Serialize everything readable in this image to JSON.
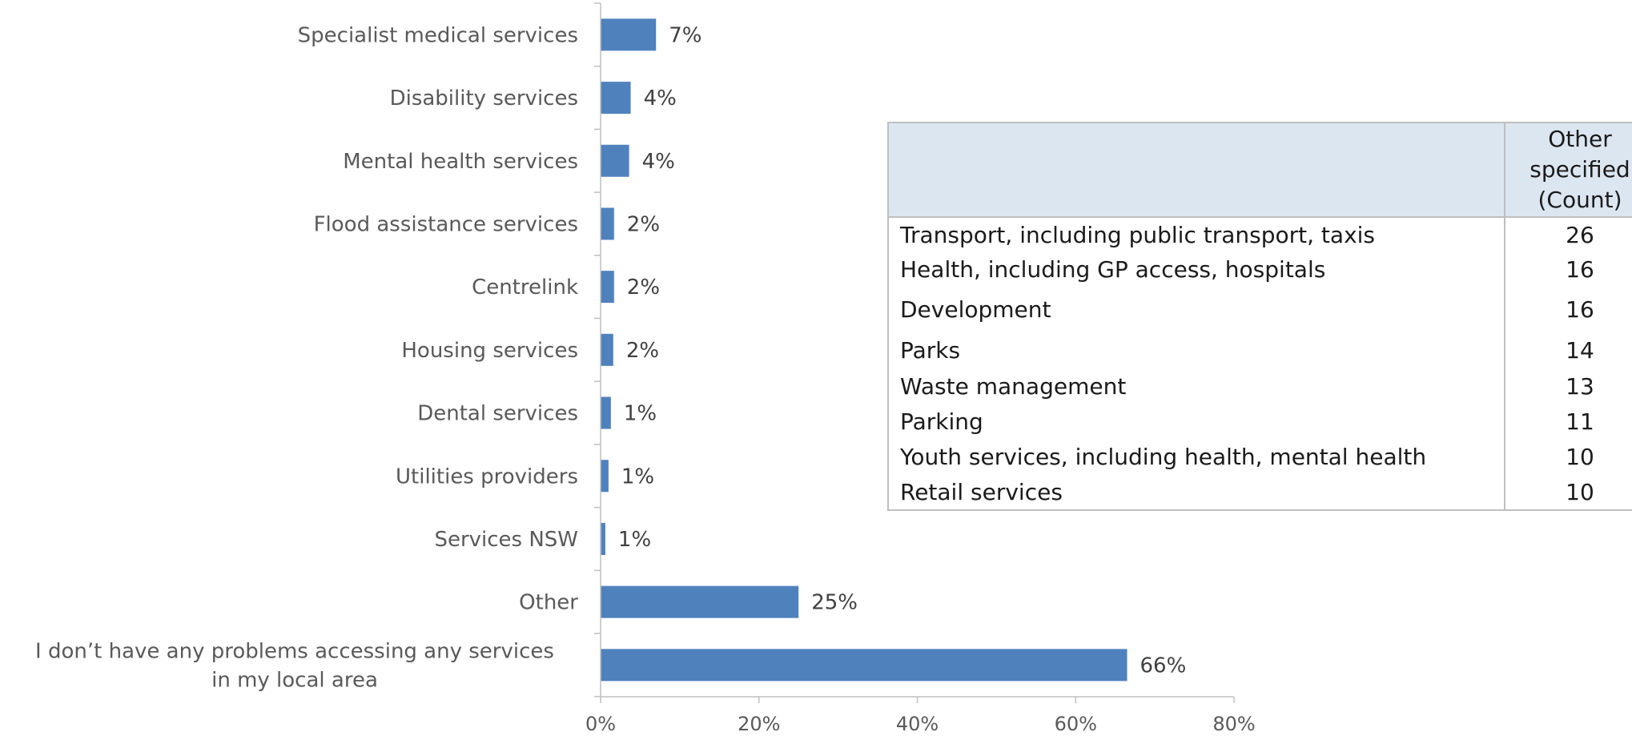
{
  "chart_data": {
    "type": "bar",
    "orientation": "horizontal",
    "categories": [
      "Specialist medical services",
      "Disability services",
      "Mental health services",
      "Flood assistance services",
      "Centrelink",
      "Housing services",
      "Dental services",
      "Utilities providers",
      "Services NSW",
      "Other",
      "I don’t have any problems accessing any services in my local area"
    ],
    "category_lines": [
      [
        "Specialist medical services"
      ],
      [
        "Disability services"
      ],
      [
        "Mental health services"
      ],
      [
        "Flood assistance services"
      ],
      [
        "Centrelink"
      ],
      [
        "Housing services"
      ],
      [
        "Dental services"
      ],
      [
        "Utilities providers"
      ],
      [
        "Services NSW"
      ],
      [
        "Other"
      ],
      [
        "I don’t have any problems accessing any services",
        "in my local area"
      ]
    ],
    "values": [
      7,
      4,
      4,
      2,
      2,
      2,
      1,
      1,
      1,
      25,
      66
    ],
    "bar_lengths": [
      7,
      3.8,
      3.6,
      1.7,
      1.7,
      1.6,
      1.3,
      1.0,
      0.6,
      25,
      66.5
    ],
    "value_labels": [
      "7%",
      "4%",
      "4%",
      "2%",
      "2%",
      "2%",
      "1%",
      "1%",
      "1%",
      "25%",
      "66%"
    ],
    "xlim": [
      0,
      80
    ],
    "xticks": [
      0,
      20,
      40,
      60,
      80
    ],
    "xtick_labels": [
      "0%",
      "20%",
      "40%",
      "60%",
      "80%"
    ],
    "bar_color": "#4f81bd",
    "grid": false
  },
  "table": {
    "header": {
      "item": "",
      "count": "Other\nspecified\n(Count)"
    },
    "rows": [
      {
        "item": "Transport, including public transport, taxis",
        "count": "26"
      },
      {
        "item": "Health, including GP access, hospitals",
        "count": "16"
      },
      {
        "item": "Development",
        "count": "16"
      },
      {
        "item": "Parks",
        "count": "14"
      },
      {
        "item": "Waste management",
        "count": "13"
      },
      {
        "item": "Parking",
        "count": "11"
      },
      {
        "item": "Youth services, including health, mental health",
        "count": "10"
      },
      {
        "item": "Retail services",
        "count": "10"
      }
    ]
  }
}
